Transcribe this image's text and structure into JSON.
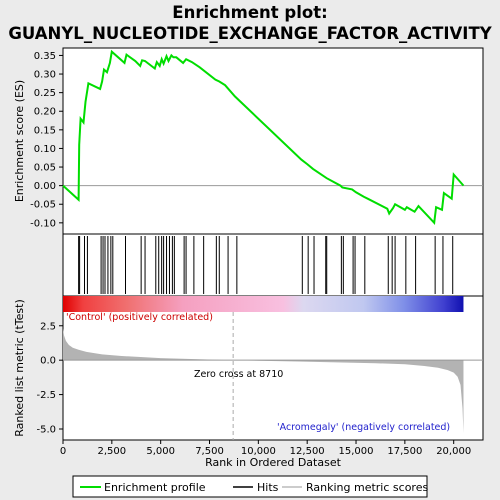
{
  "title_line1": "Enrichment plot:",
  "title_line2": "GUANYL_NUCLEOTIDE_EXCHANGE_FACTOR_ACTIVITY",
  "colors": {
    "enrichment_line": "#00dd00",
    "hits": "#000000",
    "metric_fill": "#b3b3b3",
    "zero_line": "#999999",
    "positive_label": "#cc0000",
    "negative_label": "#2222cc"
  },
  "chart_data": [
    {
      "type": "line",
      "panel": "enrichment",
      "ylabel": "Enrichment score (ES)",
      "ylim": [
        -0.13,
        0.37
      ],
      "yticks": [
        "0.35",
        "0.30",
        "0.25",
        "0.20",
        "0.15",
        "0.10",
        "0.05",
        "0.00",
        "-0.05",
        "-0.10"
      ],
      "ytick_values": [
        0.35,
        0.3,
        0.25,
        0.2,
        0.15,
        0.1,
        0.05,
        0.0,
        -0.05,
        -0.1
      ],
      "grid": false,
      "series": [
        {
          "x": [
            0,
            800,
            830,
            900,
            1050,
            1150,
            1300,
            1900,
            2000,
            2100,
            2250,
            2400,
            2500,
            3150,
            3250,
            3700,
            3950,
            4050,
            4200,
            4700,
            4800,
            4950,
            5050,
            5150,
            5300,
            5400,
            5550,
            5650,
            5800,
            6150,
            6300,
            6600,
            7000,
            7800,
            8000,
            8300,
            8800,
            12200,
            12500,
            12800,
            13500,
            14200,
            14300,
            14800,
            15000,
            15400,
            15600,
            16600,
            16700,
            16900,
            17000,
            17500,
            17600,
            18000,
            18200,
            19000,
            19100,
            19400,
            19500,
            19900,
            20000,
            20500
          ],
          "y": [
            0.0,
            -0.038,
            0.11,
            0.18,
            0.17,
            0.225,
            0.275,
            0.26,
            0.28,
            0.312,
            0.305,
            0.33,
            0.36,
            0.33,
            0.352,
            0.335,
            0.322,
            0.337,
            0.335,
            0.315,
            0.332,
            0.322,
            0.34,
            0.328,
            0.348,
            0.335,
            0.35,
            0.345,
            0.345,
            0.33,
            0.34,
            0.332,
            0.318,
            0.285,
            0.28,
            0.27,
            0.24,
            0.07,
            0.058,
            0.045,
            0.02,
            0.0,
            -0.005,
            -0.01,
            -0.018,
            -0.03,
            -0.035,
            -0.062,
            -0.075,
            -0.06,
            -0.05,
            -0.065,
            -0.058,
            -0.07,
            -0.055,
            -0.1,
            -0.058,
            -0.065,
            -0.02,
            -0.035,
            0.03,
            0.0
          ]
        }
      ]
    },
    {
      "type": "hits",
      "panel": "hits",
      "positions": [
        800,
        850,
        1100,
        1250,
        1950,
        2050,
        2150,
        2300,
        2450,
        2550,
        3200,
        4000,
        4200,
        4750,
        4900,
        5050,
        5150,
        5300,
        5450,
        5600,
        5700,
        6200,
        6300,
        6700,
        7200,
        7850,
        8000,
        8450,
        8900,
        12250,
        12550,
        12850,
        13450,
        13500,
        14250,
        14350,
        14850,
        14950,
        15450,
        16650,
        16850,
        17000,
        17550,
        18050,
        19050,
        19450,
        19950
      ]
    },
    {
      "type": "area",
      "panel": "ranked_metric",
      "ylabel": "Ranked list metric (tTest)",
      "xlabel": "Rank in Ordered Dataset",
      "xlim": [
        0,
        21500
      ],
      "ylim": [
        -5.8,
        3.5
      ],
      "xticks": [
        "0",
        "2,500",
        "5,000",
        "7,500",
        "10,000",
        "12,500",
        "15,000",
        "17,500",
        "20,000"
      ],
      "xtick_values": [
        0,
        2500,
        5000,
        7500,
        10000,
        12500,
        15000,
        17500,
        20000
      ],
      "yticks": [
        "2.5",
        "0.0",
        "-2.5",
        "-5.0"
      ],
      "ytick_values": [
        2.5,
        0.0,
        -2.5,
        -5.0
      ],
      "x": [
        0,
        50,
        150,
        300,
        500,
        800,
        1200,
        2000,
        3000,
        5000,
        7000,
        8710,
        10000,
        12000,
        14000,
        16000,
        17500,
        18500,
        19200,
        19700,
        20000,
        20200,
        20350,
        20450,
        20500
      ],
      "values": [
        2.3,
        1.8,
        1.4,
        1.1,
        0.9,
        0.75,
        0.6,
        0.42,
        0.3,
        0.15,
        0.06,
        0.0,
        -0.04,
        -0.1,
        -0.16,
        -0.22,
        -0.3,
        -0.42,
        -0.55,
        -0.72,
        -0.9,
        -1.2,
        -1.8,
        -3.5,
        -5.3
      ],
      "zero_cross_label": "Zero cross at 8710",
      "zero_cross": 8710,
      "positive_label": "'Control' (positively correlated)",
      "negative_label": "'Acromegaly' (negatively correlated)"
    }
  ],
  "legend": {
    "items": [
      "Enrichment profile",
      "Hits",
      "Ranking metric scores"
    ]
  }
}
